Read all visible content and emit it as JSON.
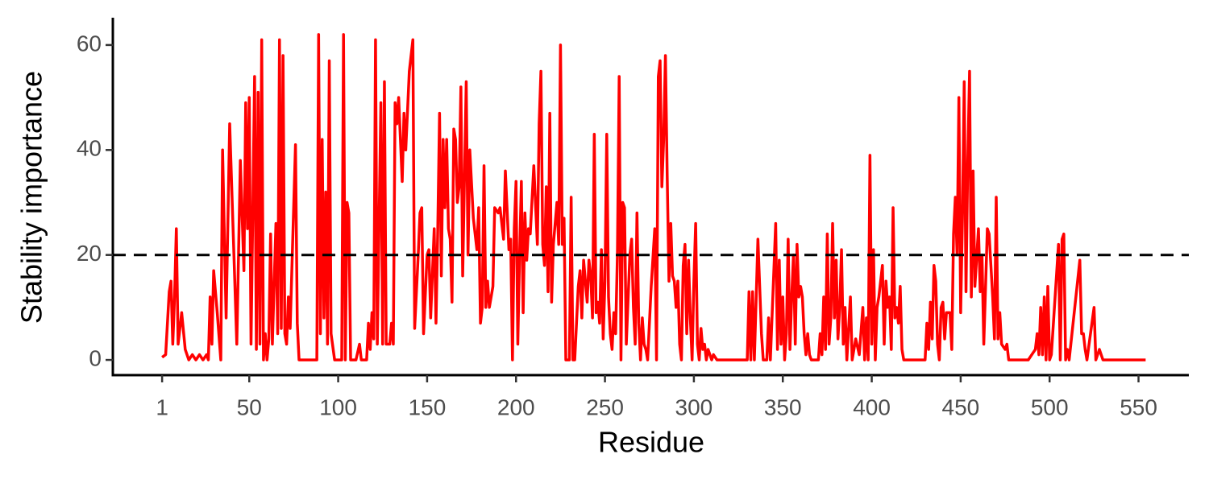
{
  "chart_data": {
    "type": "line",
    "x_label": "Residue",
    "y_label": "Stability importance",
    "xlim": [
      -26.7,
      578.3
    ],
    "ylim": [
      -2.9,
      65.2
    ],
    "xticks": [
      1,
      50,
      100,
      150,
      200,
      250,
      300,
      350,
      400,
      450,
      500,
      550
    ],
    "yticks": [
      0,
      20,
      40,
      60
    ],
    "hline": 20,
    "hline_color": "#000000",
    "series": [
      {
        "color": "#ff0000",
        "x": [
          1,
          3,
          5,
          6,
          7,
          8,
          9,
          10,
          12,
          14,
          16,
          18,
          20,
          22,
          24,
          26,
          27,
          28,
          29,
          30,
          32,
          34,
          35,
          37,
          39,
          41,
          43,
          45,
          47,
          48,
          49,
          50,
          51,
          53,
          54,
          55,
          56,
          57,
          58,
          59,
          60,
          61,
          62,
          63,
          65,
          66,
          67,
          68,
          69,
          70,
          71,
          72,
          73,
          76,
          77,
          78,
          88,
          89,
          90,
          91,
          92,
          93,
          94,
          95,
          96,
          98,
          102,
          103,
          104,
          105,
          106,
          107,
          110,
          112,
          113,
          116,
          117,
          118,
          119,
          120,
          121,
          122,
          124,
          125,
          126,
          127,
          129,
          130,
          131,
          132,
          133,
          134,
          136,
          137,
          138,
          140,
          142,
          143,
          145,
          146,
          147,
          148,
          150,
          151,
          152,
          154,
          155,
          156,
          157,
          158,
          159,
          160,
          161,
          162,
          163,
          164,
          165,
          166,
          167,
          168,
          169,
          170,
          172,
          173,
          174,
          176,
          178,
          179,
          180,
          181,
          182,
          183,
          184,
          185,
          187,
          188,
          190,
          191,
          193,
          194,
          196,
          197,
          198,
          199,
          200,
          201,
          202,
          203,
          204,
          205,
          206,
          207,
          208,
          210,
          212,
          213,
          214,
          215,
          216,
          217,
          218,
          219,
          220,
          221,
          223,
          224,
          225,
          226,
          227,
          228,
          230,
          231,
          232,
          233,
          235,
          236,
          237,
          238,
          240,
          241,
          242,
          243,
          244,
          245,
          246,
          247,
          248,
          249,
          250,
          251,
          252,
          253,
          254,
          255,
          256,
          257,
          258,
          259,
          260,
          261,
          262,
          264,
          265,
          266,
          267,
          268,
          269,
          270,
          271,
          272,
          273,
          274,
          276,
          278,
          279,
          280,
          281,
          282,
          283,
          284,
          285,
          286,
          287,
          288,
          289,
          290,
          291,
          292,
          293,
          294,
          295,
          296,
          297,
          298,
          299,
          300,
          301,
          302,
          303,
          304,
          305,
          306,
          307,
          308,
          310,
          311,
          313,
          330,
          331,
          332,
          333,
          334,
          336,
          338,
          339,
          341,
          342,
          343,
          346,
          347,
          348,
          349,
          350,
          351,
          352,
          353,
          354,
          355,
          356,
          357,
          358,
          359,
          360,
          361,
          362,
          363,
          364,
          365,
          366,
          370,
          371,
          372,
          373,
          374,
          375,
          376,
          377,
          378,
          379,
          380,
          381,
          382,
          383,
          384,
          385,
          386,
          388,
          389,
          391,
          393,
          395,
          396,
          397,
          398,
          399,
          400,
          401,
          402,
          403,
          404,
          405,
          406,
          407,
          408,
          409,
          410,
          411,
          412,
          413,
          414,
          415,
          416,
          417,
          418,
          430,
          431,
          432,
          433,
          434,
          435,
          436,
          437,
          438,
          439,
          440,
          441,
          442,
          444,
          445,
          446,
          447,
          448,
          449,
          450,
          451,
          452,
          453,
          454,
          455,
          456,
          457,
          458,
          460,
          461,
          462,
          463,
          465,
          466,
          467,
          468,
          469,
          470,
          471,
          472,
          473,
          475,
          476,
          477,
          488,
          490,
          492,
          493,
          494,
          495,
          496,
          497,
          498,
          499,
          500,
          501,
          505,
          506,
          507,
          508,
          509,
          510,
          511,
          517,
          518,
          519,
          520,
          521,
          525,
          526,
          528,
          530,
          554
        ],
        "values": [
          0.5,
          1,
          13,
          15,
          3,
          12,
          25,
          3,
          9,
          2,
          0,
          1,
          0,
          1,
          0,
          1,
          0,
          12,
          3,
          17,
          9,
          0,
          40,
          8,
          45,
          24,
          3,
          38,
          17,
          49,
          25,
          50,
          3,
          54,
          2,
          51,
          3,
          61,
          0,
          5,
          0,
          4,
          24,
          3,
          26,
          5,
          61,
          6,
          58,
          5,
          3,
          12,
          6,
          41,
          7,
          0,
          0,
          62,
          5,
          42,
          8,
          32,
          3,
          57,
          5,
          0,
          0,
          62,
          0,
          30,
          28,
          0,
          0,
          3,
          0,
          0,
          7,
          2,
          9,
          4,
          61,
          3,
          49,
          3,
          53,
          3,
          3,
          7,
          3,
          49,
          45,
          50,
          34,
          47,
          40,
          55,
          61,
          6,
          20,
          28,
          29,
          5,
          20,
          21,
          8,
          25,
          7,
          25,
          47,
          16,
          42,
          29,
          42,
          25,
          23,
          11,
          44,
          42,
          30,
          33,
          52,
          16,
          53,
          20,
          40,
          27,
          21,
          29,
          7,
          10,
          37,
          10,
          15,
          10,
          14,
          29,
          28,
          29,
          23,
          36,
          21,
          23,
          0,
          25,
          34,
          3,
          20,
          34,
          9,
          28,
          19,
          25,
          24,
          37,
          22,
          45,
          55,
          22,
          18,
          33,
          13,
          47,
          11,
          22,
          30,
          22,
          60,
          22,
          27,
          0,
          0,
          31,
          0,
          0,
          14,
          17,
          8,
          19,
          11,
          19,
          16,
          8,
          43,
          9,
          11,
          7,
          21,
          4,
          15,
          43,
          12,
          5,
          2,
          9,
          5,
          20,
          54,
          0,
          30,
          29,
          3,
          20,
          23,
          10,
          3,
          28,
          7,
          0,
          8,
          3,
          2,
          0,
          14,
          25,
          0,
          54,
          57,
          33,
          42,
          58,
          35,
          15,
          26,
          16,
          15,
          10,
          15,
          3,
          0,
          18,
          22,
          5,
          19,
          8,
          0,
          15,
          26,
          3,
          0,
          6,
          2,
          3,
          0,
          2,
          0,
          1,
          0,
          0,
          13,
          0,
          13,
          0,
          23,
          5,
          0,
          0,
          8,
          0,
          26,
          2,
          19,
          3,
          12,
          0,
          5,
          23,
          2,
          12,
          20,
          3,
          22,
          12,
          14,
          12,
          5,
          1,
          5,
          1,
          0,
          0,
          5,
          1,
          12,
          2,
          24,
          3,
          8,
          26,
          8,
          19,
          4,
          10,
          21,
          3,
          10,
          0,
          12,
          0,
          4,
          1,
          10,
          0,
          8,
          0,
          39,
          3,
          21,
          0,
          10,
          12,
          15,
          18,
          3,
          15,
          10,
          12,
          2,
          29,
          8,
          10,
          7,
          14,
          2,
          0,
          0,
          7,
          2,
          11,
          4,
          18,
          15,
          3,
          0,
          10,
          11,
          4,
          9,
          9,
          2,
          24,
          31,
          20,
          50,
          9,
          27,
          53,
          13,
          38,
          55,
          12,
          36,
          14,
          25,
          13,
          20,
          3,
          25,
          24,
          18,
          12,
          4,
          31,
          4,
          9,
          3,
          2,
          3,
          0,
          0,
          1,
          2,
          5,
          1,
          10,
          1,
          12,
          0,
          14,
          0,
          1,
          22,
          0,
          23,
          24,
          0,
          2,
          0,
          19,
          5,
          5,
          2,
          0,
          10,
          0,
          2,
          0,
          0
        ]
      }
    ]
  }
}
